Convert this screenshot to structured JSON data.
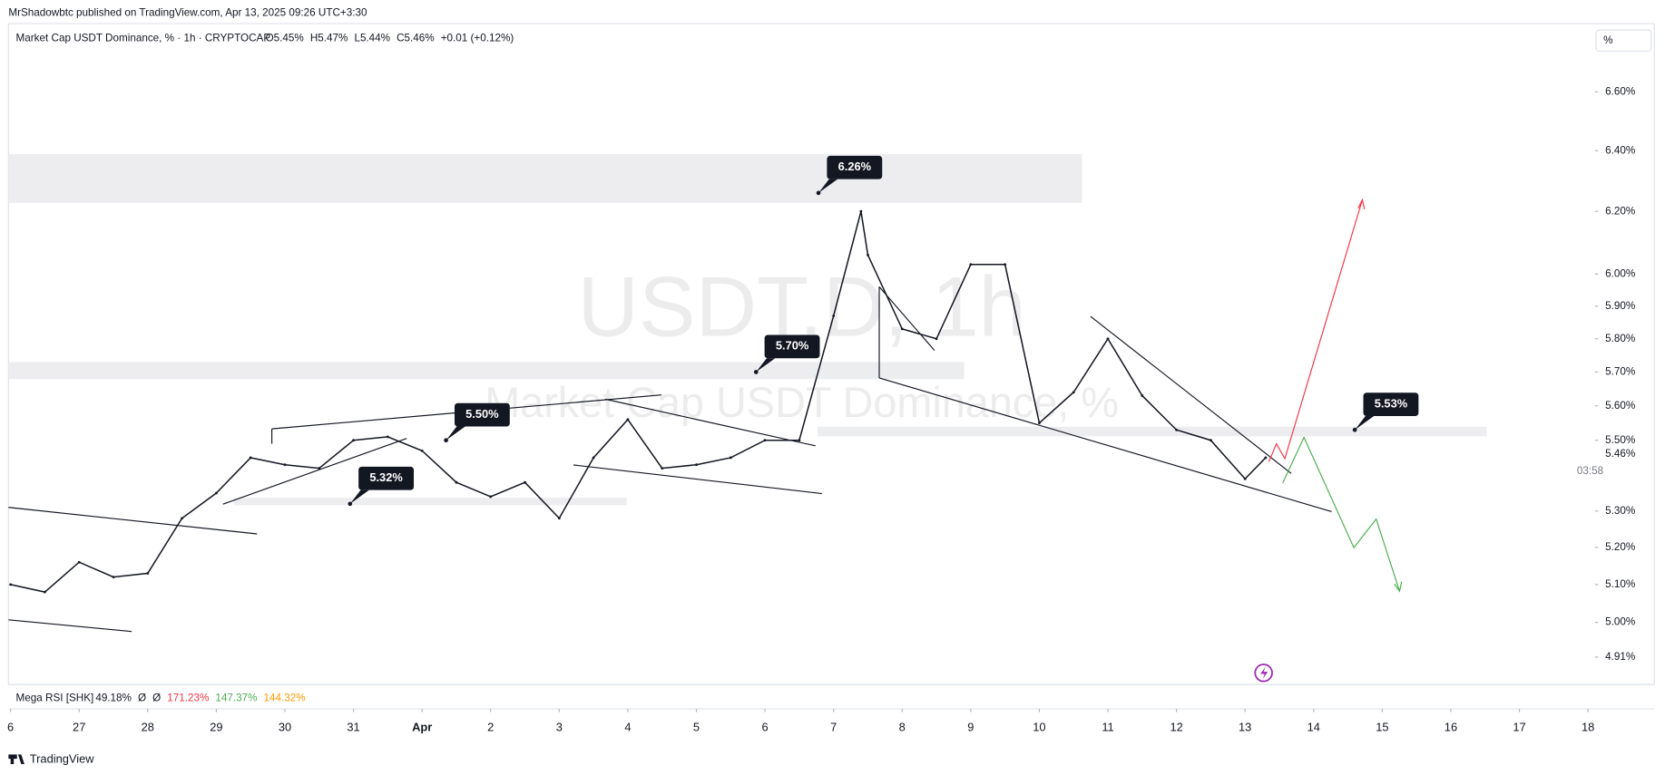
{
  "header": {
    "published": "MrShadowbtc published on TradingView.com, Apr 13, 2025 09:26 UTC+3:30",
    "symbol": "Market Cap USDT Dominance, % · 1h · CRYPTOCAP",
    "ohlc": [
      "O5.45%",
      "H5.47%",
      "L5.44%",
      "C5.46%",
      "+0.01 (+0.12%)"
    ],
    "scale_button": "%",
    "watermark": [
      "USDT.D, 1h",
      "Market Cap USDT Dominance, %"
    ],
    "indicator": {
      "name": "Mega RSI [SHK]",
      "values": [
        "49.18%",
        "Ø",
        "Ø",
        "171.23%",
        "147.37%",
        "144.32%"
      ]
    },
    "countdown": "03:58",
    "brand": "TradingView"
  },
  "chart_data": {
    "type": "line",
    "log_scale": true,
    "color": "#131722",
    "x": [
      0,
      0.5,
      1,
      1.5,
      2,
      2.5,
      3,
      3.5,
      4,
      4.5,
      5,
      5.5,
      6,
      6.5,
      7,
      7.5,
      8,
      8.5,
      9,
      9.5,
      10,
      10.5,
      11,
      11.5,
      12,
      12.4,
      12.5,
      13,
      13.5,
      14,
      14.5,
      15,
      15.5,
      16,
      16.5,
      17,
      17.5,
      18,
      18.3
    ],
    "values": [
      5.1,
      5.08,
      5.16,
      5.12,
      5.13,
      5.28,
      5.35,
      5.45,
      5.43,
      5.42,
      5.5,
      5.51,
      5.47,
      5.38,
      5.34,
      5.38,
      5.28,
      5.45,
      5.56,
      5.42,
      5.43,
      5.45,
      5.5,
      5.5,
      5.87,
      6.2,
      6.06,
      5.83,
      5.8,
      6.03,
      6.03,
      5.55,
      5.64,
      5.8,
      5.63,
      5.53,
      5.5,
      5.39,
      5.45
    ],
    "xlim": [
      -0.03,
      23.07
    ],
    "xticks": [
      {
        "value": 0,
        "label": "6"
      },
      {
        "value": 1,
        "label": "27"
      },
      {
        "value": 2,
        "label": "28"
      },
      {
        "value": 3,
        "label": "29"
      },
      {
        "value": 4,
        "label": "30"
      },
      {
        "value": 5,
        "label": "31"
      },
      {
        "value": 6,
        "label": "Apr"
      },
      {
        "value": 7,
        "label": "2"
      },
      {
        "value": 8,
        "label": "3"
      },
      {
        "value": 9,
        "label": "4"
      },
      {
        "value": 10,
        "label": "5"
      },
      {
        "value": 11,
        "label": "6"
      },
      {
        "value": 12,
        "label": "7"
      },
      {
        "value": 13,
        "label": "8"
      },
      {
        "value": 14,
        "label": "9"
      },
      {
        "value": 15,
        "label": "10"
      },
      {
        "value": 16,
        "label": "11"
      },
      {
        "value": 17,
        "label": "12"
      },
      {
        "value": 18,
        "label": "13"
      },
      {
        "value": 19,
        "label": "14"
      },
      {
        "value": 20,
        "label": "15"
      },
      {
        "value": 21,
        "label": "16"
      },
      {
        "value": 22,
        "label": "17"
      },
      {
        "value": 23,
        "label": "18"
      }
    ],
    "ylim": [
      4.84,
      6.84
    ],
    "yticks": [
      {
        "value": 6.6,
        "label": "6.60%"
      },
      {
        "value": 6.4,
        "label": "6.40%"
      },
      {
        "value": 6.2,
        "label": "6.20%"
      },
      {
        "value": 6.0,
        "label": "6.00%"
      },
      {
        "value": 5.9,
        "label": "5.90%"
      },
      {
        "value": 5.8,
        "label": "5.80%"
      },
      {
        "value": 5.7,
        "label": "5.70%"
      },
      {
        "value": 5.6,
        "label": "5.60%"
      },
      {
        "value": 5.5,
        "label": "5.50%"
      },
      {
        "value": 5.3,
        "label": "5.30%"
      },
      {
        "value": 5.2,
        "label": "5.20%"
      },
      {
        "value": 5.1,
        "label": "5.10%"
      },
      {
        "value": 5.0,
        "label": "5.00%"
      },
      {
        "value": 4.91,
        "label": "4.91%"
      }
    ],
    "last_price": {
      "value": 5.46,
      "label": "5.46%"
    },
    "annotations": [
      {
        "x": 11.78,
        "value": 6.26,
        "label": "6.26%"
      },
      {
        "x": 10.87,
        "value": 5.7,
        "label": "5.70%"
      },
      {
        "x": 6.35,
        "value": 5.5,
        "label": "5.50%"
      },
      {
        "x": 4.95,
        "value": 5.32,
        "label": "5.32%"
      },
      {
        "x": 19.6,
        "value": 5.53,
        "label": "5.53%"
      }
    ]
  }
}
